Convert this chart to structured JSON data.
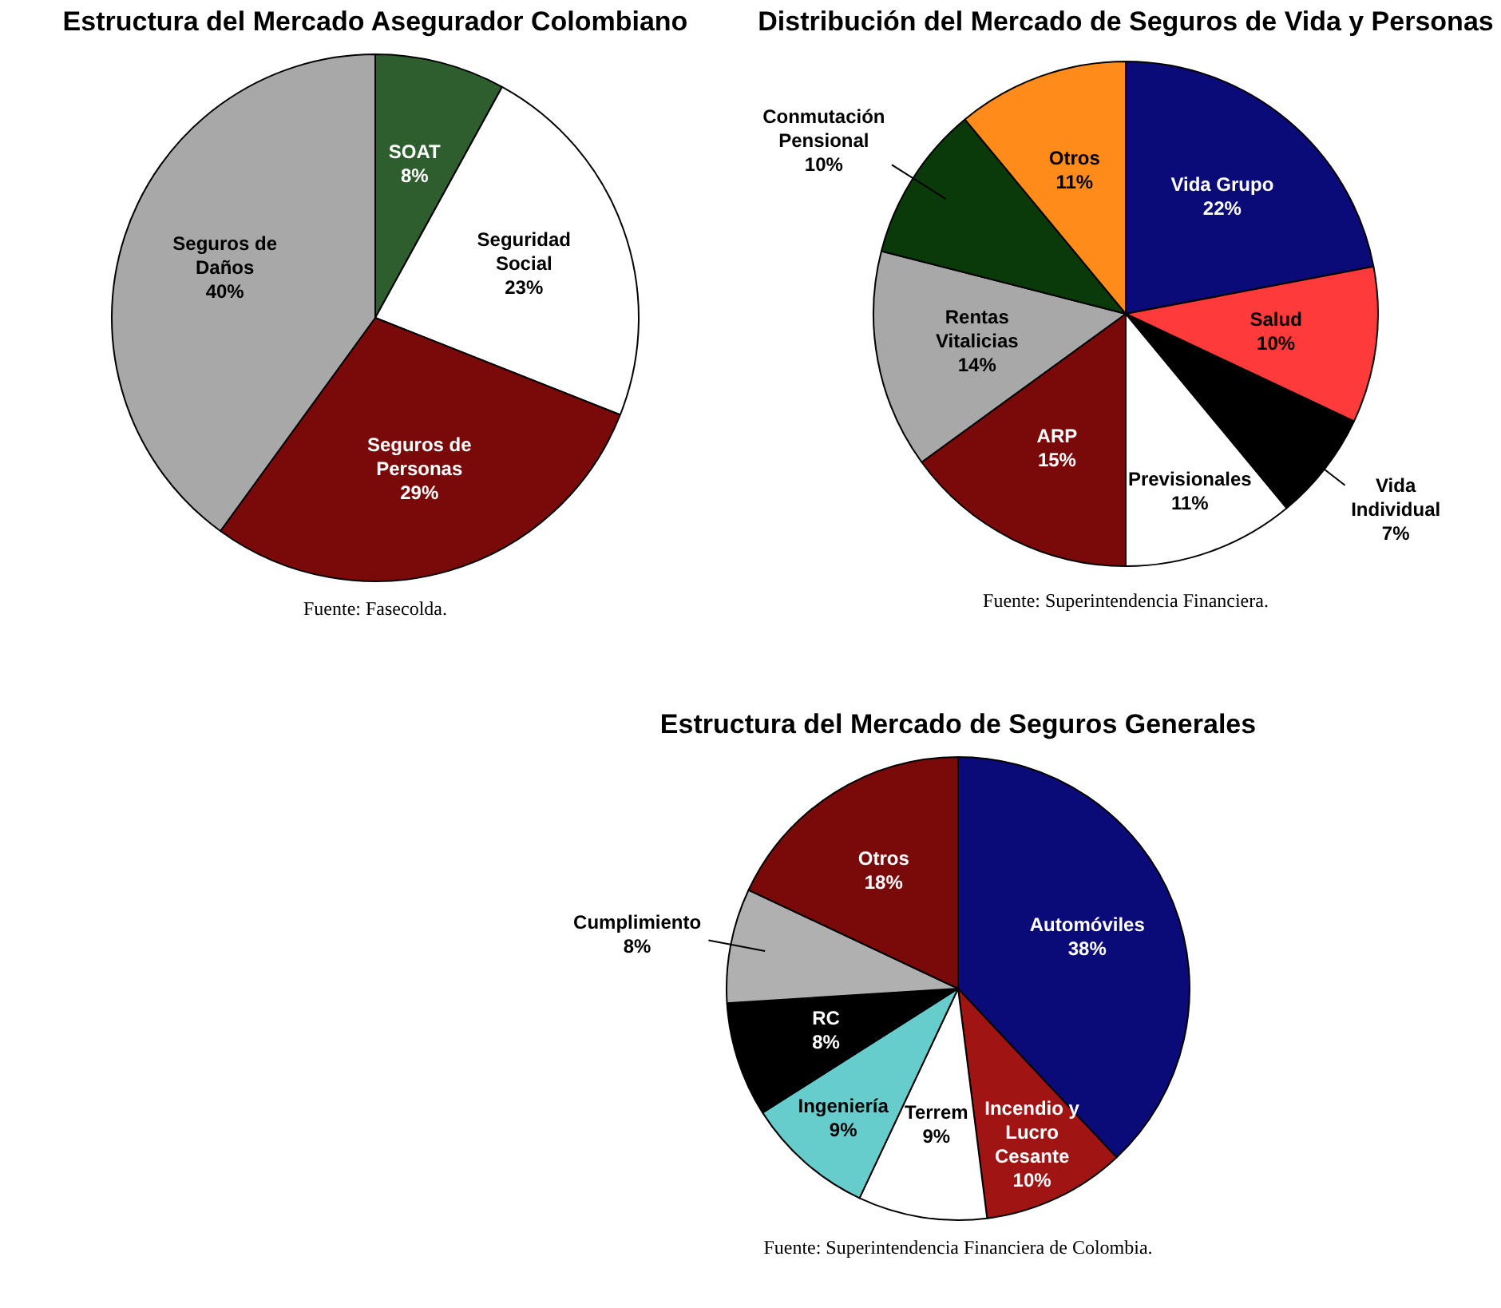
{
  "chart_data": [
    {
      "type": "pie",
      "title": "Estructura del Mercado Asegurador Colombiano",
      "categories": [
        "SOAT",
        "Seguridad Social",
        "Seguros de Personas",
        "Seguros de Daños"
      ],
      "values": [
        8,
        23,
        29,
        40
      ],
      "value_labels": [
        "8%",
        "23%",
        "29%",
        "40%"
      ],
      "colors": [
        "#2e5e2e",
        "#ffffff",
        "#7a0a0a",
        "#a8a8a8"
      ],
      "annotations": [
        "Fuente: Fasecolda."
      ]
    },
    {
      "type": "pie",
      "title": "Distribución del Mercado de Seguros de Vida y Personas",
      "categories": [
        "Vida Grupo",
        "Salud",
        "Vida Individual",
        "Previsionales",
        "ARP",
        "Rentas Vitalicias",
        "Conmutación Pensional",
        "Otros"
      ],
      "values": [
        22,
        10,
        7,
        11,
        15,
        14,
        10,
        11
      ],
      "value_labels": [
        "22%",
        "10%",
        "7%",
        "11%",
        "15%",
        "14%",
        "10%",
        "11%"
      ],
      "colors": [
        "#0a0a78",
        "#ff3a3a",
        "#000000",
        "#ffffff",
        "#7a0a0a",
        "#a8a8a8",
        "#0a3a0a",
        "#ff8c1a"
      ],
      "annotations": [
        "Fuente: Superintendencia Financiera."
      ]
    },
    {
      "type": "pie",
      "title": "Estructura del Mercado de Seguros Generales",
      "categories": [
        "Automóviles",
        "Incendio y Lucro Cesante",
        "Terrem",
        "Ingeniería",
        "RC",
        "Cumplimiento",
        "Otros"
      ],
      "values": [
        38,
        10,
        9,
        9,
        8,
        8,
        18
      ],
      "value_labels": [
        "38%",
        "10%",
        "9%",
        "9%",
        "8%",
        "8%",
        "18%"
      ],
      "colors": [
        "#0a0a78",
        "#a01414",
        "#ffffff",
        "#66cccc",
        "#000000",
        "#b0b0b0",
        "#7a0a0a"
      ],
      "annotations": [
        "Fuente: Superintendencia Financiera de Colombia."
      ]
    }
  ]
}
